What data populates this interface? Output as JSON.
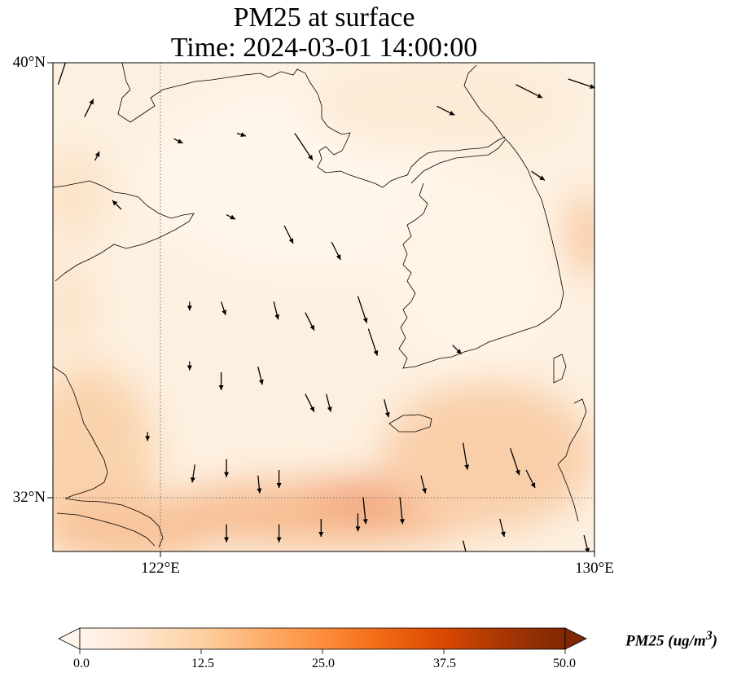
{
  "title_line1": "PM25 at surface",
  "title_line2": "Time: 2024-03-01 14:00:00",
  "lat_labels": [
    "40°N",
    "32°N"
  ],
  "lon_labels": [
    "122°E",
    "130°E"
  ],
  "colorbar": {
    "ticks": [
      "0.0",
      "12.5",
      "25.0",
      "37.5",
      "50.0"
    ],
    "min": 0,
    "max": 50,
    "extend": "both",
    "label_text": "PM25 (ug/m",
    "label_sup": "3",
    "label_close": ")",
    "colormap": [
      "#fff5eb",
      "#fee6ce",
      "#fdd0a2",
      "#fdae6b",
      "#fd8d3c",
      "#f16913",
      "#d94801",
      "#a63603",
      "#7f2704"
    ]
  },
  "chart_data": {
    "type": "heatmap",
    "title": "PM25 at surface\nTime: 2024-03-01 14:00:00",
    "variable": "PM25",
    "units": "ug/m3",
    "lon_range": [
      119.7,
      130.0
    ],
    "lat_range": [
      31.0,
      40.0
    ],
    "gridlines": {
      "lon": [
        122
      ],
      "lat": [
        32
      ]
    },
    "colorbar_range": [
      0,
      50
    ],
    "pm25_samples": [
      {
        "lon": 120.0,
        "lat": 39.5,
        "value": 4
      },
      {
        "lon": 121.0,
        "lat": 37.0,
        "value": 6
      },
      {
        "lon": 121.0,
        "lat": 33.0,
        "value": 13
      },
      {
        "lon": 121.5,
        "lat": 31.5,
        "value": 22
      },
      {
        "lon": 123.5,
        "lat": 38.0,
        "value": 2
      },
      {
        "lon": 124.0,
        "lat": 35.0,
        "value": 4
      },
      {
        "lon": 124.0,
        "lat": 32.7,
        "value": 12
      },
      {
        "lon": 125.5,
        "lat": 31.8,
        "value": 24
      },
      {
        "lon": 126.2,
        "lat": 32.0,
        "value": 26
      },
      {
        "lon": 127.5,
        "lat": 32.5,
        "value": 17
      },
      {
        "lon": 127.0,
        "lat": 36.0,
        "value": 3
      },
      {
        "lon": 128.5,
        "lat": 38.5,
        "value": 5
      },
      {
        "lon": 129.8,
        "lat": 35.5,
        "value": 14
      },
      {
        "lon": 129.0,
        "lat": 33.5,
        "value": 13
      },
      {
        "lon": 129.5,
        "lat": 31.3,
        "value": 15
      }
    ],
    "wind_vectors": [
      {
        "lon": 119.8,
        "lat": 39.6,
        "u": 1,
        "v": 3
      },
      {
        "lon": 120.3,
        "lat": 39.0,
        "u": 1,
        "v": 2
      },
      {
        "lon": 120.5,
        "lat": 38.2,
        "u": 0.5,
        "v": 1
      },
      {
        "lon": 121.0,
        "lat": 37.3,
        "u": -1,
        "v": 1
      },
      {
        "lon": 122.0,
        "lat": 38.6,
        "u": 1,
        "v": -0.5
      },
      {
        "lon": 123.2,
        "lat": 38.7,
        "u": 1,
        "v": -0.3
      },
      {
        "lon": 124.3,
        "lat": 38.7,
        "u": 2,
        "v": -3
      },
      {
        "lon": 127.0,
        "lat": 39.2,
        "u": 2,
        "v": -1
      },
      {
        "lon": 128.5,
        "lat": 39.6,
        "u": 3,
        "v": -1.5
      },
      {
        "lon": 129.5,
        "lat": 39.7,
        "u": 3,
        "v": -1
      },
      {
        "lon": 128.8,
        "lat": 38.0,
        "u": 1.5,
        "v": -1
      },
      {
        "lon": 123.0,
        "lat": 37.2,
        "u": 1,
        "v": -0.5
      },
      {
        "lon": 124.1,
        "lat": 37.0,
        "u": 1,
        "v": -2
      },
      {
        "lon": 125.0,
        "lat": 36.7,
        "u": 1,
        "v": -2
      },
      {
        "lon": 122.3,
        "lat": 35.6,
        "u": 0,
        "v": -1
      },
      {
        "lon": 122.9,
        "lat": 35.6,
        "u": 0.5,
        "v": -1.5
      },
      {
        "lon": 123.9,
        "lat": 35.6,
        "u": 0.5,
        "v": -2
      },
      {
        "lon": 124.5,
        "lat": 35.4,
        "u": 1,
        "v": -2
      },
      {
        "lon": 125.5,
        "lat": 35.7,
        "u": 1,
        "v": -3
      },
      {
        "lon": 125.7,
        "lat": 35.1,
        "u": 1,
        "v": -3
      },
      {
        "lon": 127.3,
        "lat": 34.8,
        "u": 1,
        "v": -1
      },
      {
        "lon": 122.3,
        "lat": 34.5,
        "u": 0,
        "v": -1
      },
      {
        "lon": 122.9,
        "lat": 34.3,
        "u": 0,
        "v": -2
      },
      {
        "lon": 123.6,
        "lat": 34.4,
        "u": 0.5,
        "v": -2
      },
      {
        "lon": 124.5,
        "lat": 33.9,
        "u": 1,
        "v": -2
      },
      {
        "lon": 124.9,
        "lat": 33.9,
        "u": 0.5,
        "v": -2
      },
      {
        "lon": 126.0,
        "lat": 33.8,
        "u": 0.5,
        "v": -2
      },
      {
        "lon": 121.5,
        "lat": 33.2,
        "u": 0,
        "v": -1
      },
      {
        "lon": 122.4,
        "lat": 32.6,
        "u": -0.3,
        "v": -2
      },
      {
        "lon": 123.0,
        "lat": 32.7,
        "u": 0,
        "v": -2
      },
      {
        "lon": 123.6,
        "lat": 32.4,
        "u": 0.2,
        "v": -2
      },
      {
        "lon": 124.0,
        "lat": 32.5,
        "u": 0,
        "v": -2
      },
      {
        "lon": 125.6,
        "lat": 32.0,
        "u": 0.3,
        "v": -3
      },
      {
        "lon": 126.3,
        "lat": 32.0,
        "u": 0.3,
        "v": -3
      },
      {
        "lon": 126.7,
        "lat": 32.4,
        "u": 0.5,
        "v": -2
      },
      {
        "lon": 127.5,
        "lat": 33.0,
        "u": 0.5,
        "v": -3
      },
      {
        "lon": 128.4,
        "lat": 32.9,
        "u": 1,
        "v": -3
      },
      {
        "lon": 128.7,
        "lat": 32.5,
        "u": 1,
        "v": -2
      },
      {
        "lon": 123.0,
        "lat": 31.5,
        "u": 0,
        "v": -2
      },
      {
        "lon": 124.0,
        "lat": 31.5,
        "u": 0,
        "v": -2
      },
      {
        "lon": 124.8,
        "lat": 31.6,
        "u": 0,
        "v": -2
      },
      {
        "lon": 125.5,
        "lat": 31.7,
        "u": 0,
        "v": -2
      },
      {
        "lon": 126.7,
        "lat": 31.0,
        "u": 0,
        "v": -2
      },
      {
        "lon": 127.5,
        "lat": 31.2,
        "u": 0.5,
        "v": -2
      },
      {
        "lon": 128.2,
        "lat": 31.6,
        "u": 0.5,
        "v": -2
      },
      {
        "lon": 129.8,
        "lat": 31.3,
        "u": 0.5,
        "v": -2
      }
    ]
  }
}
